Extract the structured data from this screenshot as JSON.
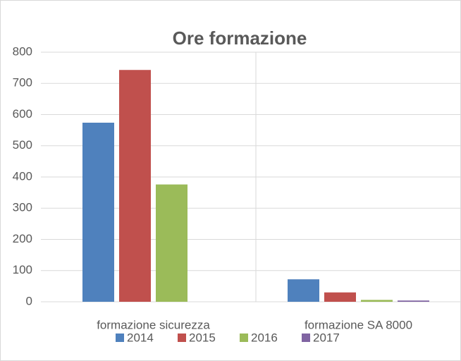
{
  "chart_data": {
    "type": "bar",
    "title": "Ore formazione",
    "categories": [
      "formazione sicurezza",
      "formazione SA 8000"
    ],
    "series": [
      {
        "name": "2014",
        "color": "#4f81bd",
        "values": [
          574,
          72
        ]
      },
      {
        "name": "2015",
        "color": "#c0504d",
        "values": [
          743,
          30
        ]
      },
      {
        "name": "2016",
        "color": "#9bbb59",
        "values": [
          376,
          6
        ]
      },
      {
        "name": "2017",
        "color": "#8064a2",
        "values": [
          0,
          4
        ]
      }
    ],
    "ylim": [
      0,
      800
    ],
    "yticks": [
      0,
      100,
      200,
      300,
      400,
      500,
      600,
      700,
      800
    ],
    "grid": true,
    "legend": "bottom"
  }
}
